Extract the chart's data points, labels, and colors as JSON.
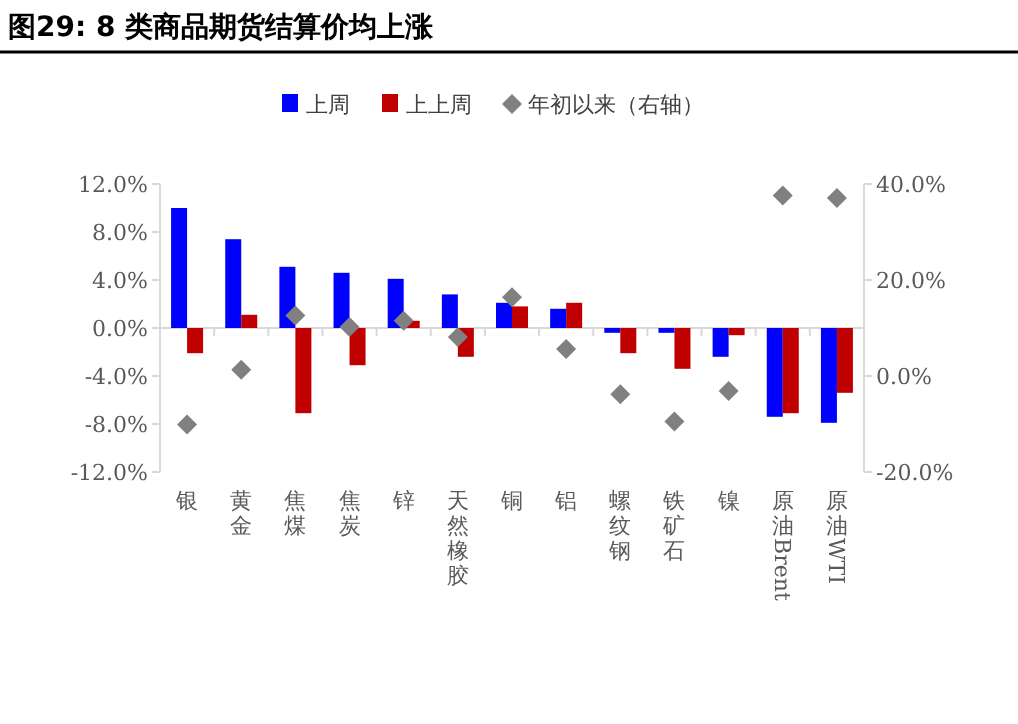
{
  "chart_data": {
    "type": "bar",
    "title": "图29:  8 类商品期货结算价均上涨",
    "categories": [
      "银",
      "黄金",
      "焦煤",
      "焦炭",
      "锌",
      "天然橡胶",
      "铜",
      "铝",
      "螺纹钢",
      "铁矿石",
      "镍",
      "原油Brent",
      "原油WTI"
    ],
    "series": [
      {
        "name": "上周",
        "color": "#0000ff",
        "values": [
          10.0,
          7.4,
          5.1,
          4.6,
          4.1,
          2.8,
          2.1,
          1.6,
          -0.4,
          -0.4,
          -2.4,
          -7.4,
          -7.9
        ]
      },
      {
        "name": "上上周",
        "color": "#c00000",
        "values": [
          -2.1,
          1.1,
          -7.1,
          -3.1,
          0.6,
          -2.4,
          1.8,
          2.1,
          -2.1,
          -3.4,
          -0.6,
          -7.1,
          -5.4
        ]
      },
      {
        "name": "年初以来（右轴）",
        "color": "#808080",
        "type": "scatter",
        "axis": "y2",
        "marker": "diamond",
        "values": [
          -10.1,
          1.3,
          12.6,
          10.2,
          11.5,
          8.1,
          16.4,
          5.6,
          -3.8,
          -9.5,
          -3.1,
          37.6,
          37.1
        ]
      }
    ],
    "ylim": [
      -12,
      12
    ],
    "yticks": [
      {
        "value": -12,
        "label": "-12.0%"
      },
      {
        "value": -8,
        "label": "-8.0%"
      },
      {
        "value": -4,
        "label": "-4.0%"
      },
      {
        "value": 0,
        "label": "0.0%"
      },
      {
        "value": 4,
        "label": "4.0%"
      },
      {
        "value": 8,
        "label": "8.0%"
      },
      {
        "value": 12,
        "label": "12.0%"
      }
    ],
    "y2lim": [
      -20,
      40
    ],
    "y2ticks": [
      {
        "value": -20,
        "label": "-20.0%"
      },
      {
        "value": 0,
        "label": "0.0%"
      },
      {
        "value": 20,
        "label": "20.0%"
      },
      {
        "value": 40,
        "label": "40.0%"
      }
    ],
    "legend": "top",
    "grid": false
  }
}
